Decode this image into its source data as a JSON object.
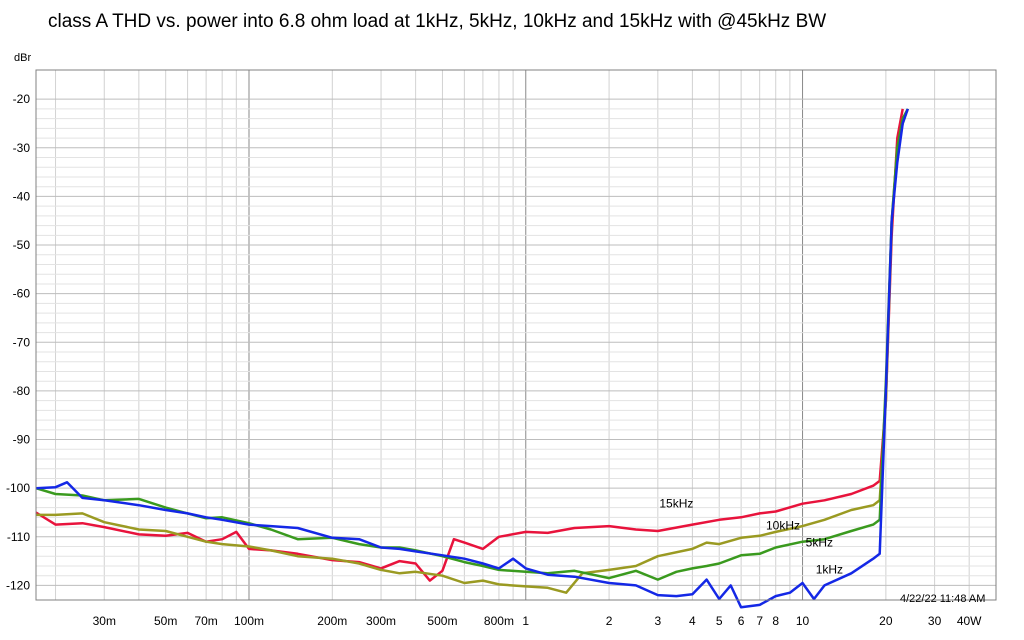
{
  "title": "class A THD vs. power into 6.8 ohm load at 1kHz, 5kHz, 10kHz and 15kHz with @45kHz BW",
  "timestamp": "4/22/22 11:48 AM",
  "chart_data": {
    "type": "line",
    "title": "class A THD vs. power into 6.8 ohm load at 1kHz, 5kHz, 10kHz and 15kHz with @45kHz BW",
    "ylabel": "dBr",
    "xlabel": "",
    "xscale": "log",
    "xlim": [
      0.017,
      50
    ],
    "ylim": [
      -123,
      -14
    ],
    "grid": true,
    "x_tick_labels": [
      {
        "x": 0.03,
        "label": "30m"
      },
      {
        "x": 0.05,
        "label": "50m"
      },
      {
        "x": 0.07,
        "label": "70m"
      },
      {
        "x": 0.1,
        "label": "100m"
      },
      {
        "x": 0.2,
        "label": "200m"
      },
      {
        "x": 0.3,
        "label": "300m"
      },
      {
        "x": 0.5,
        "label": "500m"
      },
      {
        "x": 0.8,
        "label": "800m"
      },
      {
        "x": 1,
        "label": "1"
      },
      {
        "x": 2,
        "label": "2"
      },
      {
        "x": 3,
        "label": "3"
      },
      {
        "x": 4,
        "label": "4"
      },
      {
        "x": 5,
        "label": "5"
      },
      {
        "x": 6,
        "label": "6"
      },
      {
        "x": 7,
        "label": "7"
      },
      {
        "x": 8,
        "label": "8"
      },
      {
        "x": 10,
        "label": "10"
      },
      {
        "x": 20,
        "label": "20"
      },
      {
        "x": 30,
        "label": "30"
      },
      {
        "x": 40,
        "label": "40W"
      }
    ],
    "y_ticks": [
      -20,
      -30,
      -40,
      -50,
      -60,
      -70,
      -80,
      -90,
      -100,
      -110,
      -120
    ],
    "y_tick_labels": [
      "-20",
      "-30",
      "-40",
      "-50",
      "-60",
      "-70",
      "-80",
      "-90",
      "-100",
      "-110",
      "-120"
    ],
    "series": [
      {
        "name": "15kHz",
        "color": "#e8133c",
        "label_at": [
          3.5,
          -104
        ],
        "points": [
          [
            0.017,
            -105
          ],
          [
            0.02,
            -107.5
          ],
          [
            0.025,
            -107.2
          ],
          [
            0.03,
            -108
          ],
          [
            0.04,
            -109.5
          ],
          [
            0.05,
            -109.8
          ],
          [
            0.06,
            -109.2
          ],
          [
            0.07,
            -111
          ],
          [
            0.08,
            -110.5
          ],
          [
            0.09,
            -109
          ],
          [
            0.1,
            -112.5
          ],
          [
            0.12,
            -112.8
          ],
          [
            0.15,
            -113.5
          ],
          [
            0.2,
            -114.8
          ],
          [
            0.25,
            -115.2
          ],
          [
            0.3,
            -116.5
          ],
          [
            0.35,
            -115
          ],
          [
            0.4,
            -115.5
          ],
          [
            0.45,
            -119
          ],
          [
            0.5,
            -117
          ],
          [
            0.55,
            -110.5
          ],
          [
            0.6,
            -111.2
          ],
          [
            0.7,
            -112.5
          ],
          [
            0.8,
            -110
          ],
          [
            1,
            -109
          ],
          [
            1.2,
            -109.2
          ],
          [
            1.5,
            -108.2
          ],
          [
            2,
            -107.8
          ],
          [
            2.5,
            -108.5
          ],
          [
            3,
            -108.8
          ],
          [
            4,
            -107.5
          ],
          [
            5,
            -106.5
          ],
          [
            6,
            -106
          ],
          [
            7,
            -105.2
          ],
          [
            8,
            -104.8
          ],
          [
            10,
            -103.2
          ],
          [
            12,
            -102.5
          ],
          [
            15,
            -101.2
          ],
          [
            18,
            -99.5
          ],
          [
            19,
            -98.5
          ],
          [
            20,
            -82
          ],
          [
            21,
            -48
          ],
          [
            22,
            -28
          ],
          [
            23,
            -22
          ]
        ]
      },
      {
        "name": "10kHz",
        "color": "#9a9a22",
        "label_at": [
          8.5,
          -108.5
        ],
        "points": [
          [
            0.017,
            -105.5
          ],
          [
            0.02,
            -105.5
          ],
          [
            0.025,
            -105.2
          ],
          [
            0.03,
            -107
          ],
          [
            0.04,
            -108.5
          ],
          [
            0.05,
            -108.8
          ],
          [
            0.06,
            -110
          ],
          [
            0.07,
            -111
          ],
          [
            0.08,
            -111.5
          ],
          [
            0.1,
            -112
          ],
          [
            0.12,
            -112.8
          ],
          [
            0.15,
            -114
          ],
          [
            0.2,
            -114.5
          ],
          [
            0.25,
            -115.5
          ],
          [
            0.3,
            -116.8
          ],
          [
            0.35,
            -117.5
          ],
          [
            0.4,
            -117.2
          ],
          [
            0.5,
            -118
          ],
          [
            0.6,
            -119.5
          ],
          [
            0.7,
            -119
          ],
          [
            0.8,
            -119.8
          ],
          [
            1,
            -120.2
          ],
          [
            1.2,
            -120.5
          ],
          [
            1.4,
            -121.5
          ],
          [
            1.6,
            -117.5
          ],
          [
            2,
            -116.8
          ],
          [
            2.5,
            -116
          ],
          [
            3,
            -114
          ],
          [
            4,
            -112.5
          ],
          [
            4.5,
            -111.2
          ],
          [
            5,
            -111.5
          ],
          [
            6,
            -110.2
          ],
          [
            7,
            -109.8
          ],
          [
            8,
            -109
          ],
          [
            10,
            -107.8
          ],
          [
            12,
            -106.5
          ],
          [
            15,
            -104.5
          ],
          [
            18,
            -103.5
          ],
          [
            19,
            -102.5
          ],
          [
            20,
            -82
          ],
          [
            21,
            -45
          ],
          [
            22,
            -30
          ],
          [
            23,
            -25
          ],
          [
            24,
            -22
          ]
        ]
      },
      {
        "name": "5kHz",
        "color": "#3a9a1e",
        "label_at": [
          11.5,
          -112
        ],
        "points": [
          [
            0.017,
            -100
          ],
          [
            0.02,
            -101.2
          ],
          [
            0.025,
            -101.5
          ],
          [
            0.03,
            -102.5
          ],
          [
            0.04,
            -102.2
          ],
          [
            0.05,
            -104
          ],
          [
            0.06,
            -105.2
          ],
          [
            0.07,
            -106.2
          ],
          [
            0.08,
            -106
          ],
          [
            0.1,
            -107.2
          ],
          [
            0.12,
            -108.5
          ],
          [
            0.15,
            -110.5
          ],
          [
            0.2,
            -110.2
          ],
          [
            0.25,
            -111.5
          ],
          [
            0.3,
            -112.2
          ],
          [
            0.35,
            -112.2
          ],
          [
            0.4,
            -112.8
          ],
          [
            0.5,
            -114
          ],
          [
            0.6,
            -115.2
          ],
          [
            0.7,
            -116
          ],
          [
            0.8,
            -116.8
          ],
          [
            1,
            -117.2
          ],
          [
            1.2,
            -117.5
          ],
          [
            1.5,
            -117
          ],
          [
            2,
            -118.5
          ],
          [
            2.5,
            -117
          ],
          [
            3,
            -118.8
          ],
          [
            3.5,
            -117.2
          ],
          [
            4,
            -116.5
          ],
          [
            4.5,
            -116
          ],
          [
            5,
            -115.5
          ],
          [
            6,
            -113.8
          ],
          [
            7,
            -113.5
          ],
          [
            8,
            -112.2
          ],
          [
            10,
            -111
          ],
          [
            12,
            -110.5
          ],
          [
            15,
            -108.8
          ],
          [
            18,
            -107.5
          ],
          [
            19,
            -106.5
          ],
          [
            20,
            -78
          ],
          [
            21,
            -45
          ],
          [
            22,
            -30
          ],
          [
            23,
            -24
          ],
          [
            24,
            -22
          ]
        ]
      },
      {
        "name": "1kHz",
        "color": "#1428e6",
        "label_at": [
          12.5,
          -117.5
        ],
        "points": [
          [
            0.017,
            -100
          ],
          [
            0.02,
            -99.8
          ],
          [
            0.022,
            -98.8
          ],
          [
            0.025,
            -102
          ],
          [
            0.03,
            -102.5
          ],
          [
            0.04,
            -103.5
          ],
          [
            0.05,
            -104.5
          ],
          [
            0.06,
            -105.2
          ],
          [
            0.07,
            -106
          ],
          [
            0.08,
            -106.5
          ],
          [
            0.1,
            -107.5
          ],
          [
            0.12,
            -107.8
          ],
          [
            0.15,
            -108.2
          ],
          [
            0.2,
            -110.2
          ],
          [
            0.25,
            -110.5
          ],
          [
            0.3,
            -112.2
          ],
          [
            0.35,
            -112.5
          ],
          [
            0.4,
            -113
          ],
          [
            0.5,
            -113.8
          ],
          [
            0.6,
            -114.5
          ],
          [
            0.7,
            -115.5
          ],
          [
            0.8,
            -116.5
          ],
          [
            0.9,
            -114.5
          ],
          [
            1,
            -116.5
          ],
          [
            1.2,
            -117.8
          ],
          [
            1.5,
            -118.2
          ],
          [
            2,
            -119.5
          ],
          [
            2.5,
            -120
          ],
          [
            3,
            -122
          ],
          [
            3.5,
            -122.2
          ],
          [
            4,
            -121.8
          ],
          [
            4.5,
            -118.8
          ],
          [
            5,
            -122.8
          ],
          [
            5.5,
            -120
          ],
          [
            6,
            -124.5
          ],
          [
            7,
            -124
          ],
          [
            8,
            -122.2
          ],
          [
            9,
            -121.5
          ],
          [
            10,
            -119.5
          ],
          [
            11,
            -122.8
          ],
          [
            12,
            -120
          ],
          [
            15,
            -117.5
          ],
          [
            18,
            -114.5
          ],
          [
            19,
            -113.5
          ],
          [
            20,
            -80
          ],
          [
            21,
            -45
          ],
          [
            22,
            -33
          ],
          [
            23,
            -25
          ],
          [
            24,
            -22
          ]
        ]
      }
    ]
  }
}
